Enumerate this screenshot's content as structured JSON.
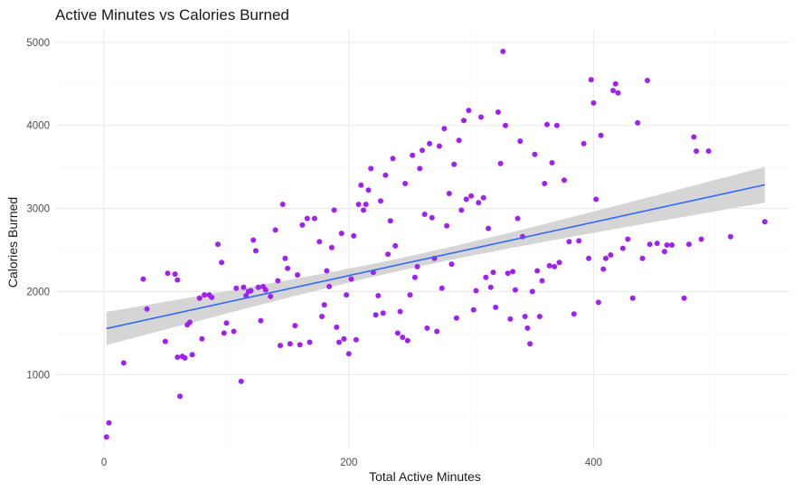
{
  "chart_data": {
    "type": "scatter",
    "title": "Active Minutes vs Calories Burned",
    "xlabel": "Total Active Minutes",
    "ylabel": "Calories Burned",
    "xlim": [
      -40,
      560
    ],
    "ylim": [
      100,
      5150
    ],
    "x_ticks": [
      0,
      200,
      400
    ],
    "y_ticks": [
      1000,
      2000,
      3000,
      4000,
      5000
    ],
    "grid": true,
    "point_color": "#a020f0",
    "fit_line_color": "#3366ff",
    "confidence_band_color": "#d3d3d3",
    "regression": {
      "x": [
        2,
        540
      ],
      "y": [
        1555,
        3285
      ],
      "ci_half_width_at_ends": [
        200,
        215
      ],
      "ci_half_width_at_mean": 75,
      "x_mean": 250
    },
    "points": [
      [
        2,
        250
      ],
      [
        4,
        420
      ],
      [
        16,
        1140
      ],
      [
        32,
        2150
      ],
      [
        35,
        1790
      ],
      [
        50,
        1400
      ],
      [
        52,
        2220
      ],
      [
        58,
        2210
      ],
      [
        60,
        2140
      ],
      [
        60,
        1210
      ],
      [
        64,
        1220
      ],
      [
        62,
        740
      ],
      [
        66,
        1200
      ],
      [
        68,
        1600
      ],
      [
        70,
        1630
      ],
      [
        72,
        1240
      ],
      [
        78,
        1920
      ],
      [
        80,
        1430
      ],
      [
        82,
        1960
      ],
      [
        86,
        1960
      ],
      [
        88,
        1930
      ],
      [
        93,
        2570
      ],
      [
        96,
        2350
      ],
      [
        98,
        1500
      ],
      [
        100,
        1620
      ],
      [
        106,
        1520
      ],
      [
        108,
        2040
      ],
      [
        112,
        920
      ],
      [
        114,
        2050
      ],
      [
        116,
        1950
      ],
      [
        118,
        2000
      ],
      [
        120,
        2010
      ],
      [
        122,
        2620
      ],
      [
        124,
        2490
      ],
      [
        126,
        2050
      ],
      [
        128,
        1650
      ],
      [
        130,
        2060
      ],
      [
        132,
        2020
      ],
      [
        136,
        1940
      ],
      [
        140,
        2740
      ],
      [
        142,
        2130
      ],
      [
        144,
        1350
      ],
      [
        146,
        3050
      ],
      [
        148,
        2400
      ],
      [
        150,
        2280
      ],
      [
        152,
        1370
      ],
      [
        156,
        1590
      ],
      [
        158,
        2200
      ],
      [
        160,
        1360
      ],
      [
        162,
        2800
      ],
      [
        166,
        2880
      ],
      [
        168,
        1390
      ],
      [
        172,
        2880
      ],
      [
        176,
        2600
      ],
      [
        178,
        1700
      ],
      [
        180,
        1840
      ],
      [
        182,
        2250
      ],
      [
        184,
        2060
      ],
      [
        186,
        2530
      ],
      [
        188,
        2980
      ],
      [
        190,
        1570
      ],
      [
        192,
        1390
      ],
      [
        194,
        2700
      ],
      [
        196,
        1430
      ],
      [
        198,
        1960
      ],
      [
        200,
        1250
      ],
      [
        202,
        2150
      ],
      [
        204,
        2670
      ],
      [
        206,
        1420
      ],
      [
        208,
        3050
      ],
      [
        210,
        3280
      ],
      [
        212,
        2980
      ],
      [
        214,
        3050
      ],
      [
        216,
        3220
      ],
      [
        218,
        3480
      ],
      [
        220,
        2230
      ],
      [
        222,
        1720
      ],
      [
        224,
        1950
      ],
      [
        226,
        3090
      ],
      [
        228,
        1740
      ],
      [
        230,
        3400
      ],
      [
        232,
        2450
      ],
      [
        234,
        2850
      ],
      [
        236,
        3600
      ],
      [
        238,
        2550
      ],
      [
        240,
        1500
      ],
      [
        242,
        1760
      ],
      [
        244,
        1450
      ],
      [
        246,
        3300
      ],
      [
        248,
        1410
      ],
      [
        250,
        1960
      ],
      [
        252,
        3640
      ],
      [
        254,
        2170
      ],
      [
        256,
        2300
      ],
      [
        258,
        3480
      ],
      [
        260,
        3700
      ],
      [
        262,
        2930
      ],
      [
        264,
        1560
      ],
      [
        266,
        3780
      ],
      [
        268,
        2890
      ],
      [
        270,
        2400
      ],
      [
        272,
        1520
      ],
      [
        274,
        3750
      ],
      [
        276,
        2040
      ],
      [
        278,
        3960
      ],
      [
        280,
        2790
      ],
      [
        282,
        3180
      ],
      [
        284,
        2330
      ],
      [
        286,
        3530
      ],
      [
        288,
        1680
      ],
      [
        290,
        3820
      ],
      [
        292,
        2980
      ],
      [
        294,
        4060
      ],
      [
        296,
        3110
      ],
      [
        298,
        4180
      ],
      [
        300,
        3150
      ],
      [
        302,
        1780
      ],
      [
        304,
        2010
      ],
      [
        306,
        3070
      ],
      [
        308,
        4100
      ],
      [
        310,
        3130
      ],
      [
        312,
        2170
      ],
      [
        314,
        2760
      ],
      [
        316,
        2050
      ],
      [
        318,
        2230
      ],
      [
        320,
        1810
      ],
      [
        322,
        4160
      ],
      [
        324,
        3540
      ],
      [
        326,
        4890
      ],
      [
        328,
        4000
      ],
      [
        330,
        2220
      ],
      [
        332,
        1670
      ],
      [
        334,
        2240
      ],
      [
        336,
        2020
      ],
      [
        338,
        2880
      ],
      [
        340,
        3810
      ],
      [
        342,
        2660
      ],
      [
        344,
        1700
      ],
      [
        346,
        1560
      ],
      [
        348,
        1370
      ],
      [
        350,
        2000
      ],
      [
        352,
        3650
      ],
      [
        354,
        2250
      ],
      [
        356,
        1700
      ],
      [
        358,
        2130
      ],
      [
        360,
        3300
      ],
      [
        362,
        4010
      ],
      [
        364,
        2310
      ],
      [
        366,
        3550
      ],
      [
        368,
        2300
      ],
      [
        370,
        4000
      ],
      [
        372,
        2350
      ],
      [
        376,
        3340
      ],
      [
        380,
        2600
      ],
      [
        384,
        1730
      ],
      [
        388,
        2610
      ],
      [
        392,
        3780
      ],
      [
        396,
        2400
      ],
      [
        398,
        4550
      ],
      [
        400,
        4270
      ],
      [
        402,
        3110
      ],
      [
        404,
        1870
      ],
      [
        406,
        3880
      ],
      [
        408,
        2270
      ],
      [
        410,
        2400
      ],
      [
        414,
        2440
      ],
      [
        416,
        4420
      ],
      [
        418,
        4500
      ],
      [
        420,
        4390
      ],
      [
        424,
        2520
      ],
      [
        428,
        2630
      ],
      [
        432,
        1920
      ],
      [
        436,
        4030
      ],
      [
        440,
        2400
      ],
      [
        444,
        4540
      ],
      [
        446,
        2570
      ],
      [
        452,
        2580
      ],
      [
        458,
        2480
      ],
      [
        460,
        2560
      ],
      [
        464,
        2560
      ],
      [
        474,
        1920
      ],
      [
        478,
        2570
      ],
      [
        482,
        3860
      ],
      [
        484,
        3690
      ],
      [
        488,
        2630
      ],
      [
        494,
        3690
      ],
      [
        512,
        2660
      ],
      [
        540,
        2840
      ]
    ]
  }
}
